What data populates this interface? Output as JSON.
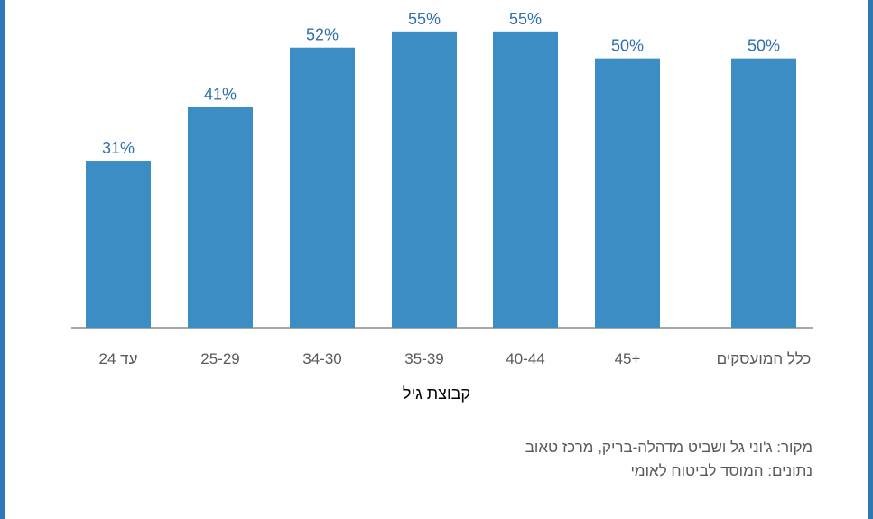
{
  "chart_data": {
    "type": "bar",
    "categories": [
      "עד 24",
      "25-29",
      "34-30",
      "35-39",
      "40-44",
      "45+",
      "כלל המועסקים"
    ],
    "values": [
      31,
      41,
      52,
      55,
      55,
      50,
      50
    ],
    "data_labels": [
      "31%",
      "41%",
      "52%",
      "55%",
      "55%",
      "50%",
      "50%"
    ],
    "xlabel": "קבוצת גיל",
    "ylim": [
      0,
      60
    ],
    "grid": false,
    "bar_color": "#3b8dc4",
    "label_color": "#2f6fb0"
  },
  "source": {
    "line1": "מקור: ג'וני גל ושביט מדהלה-בריק, מרכז טאוב",
    "line2": "נתונים: המוסד לביטוח לאומי"
  }
}
